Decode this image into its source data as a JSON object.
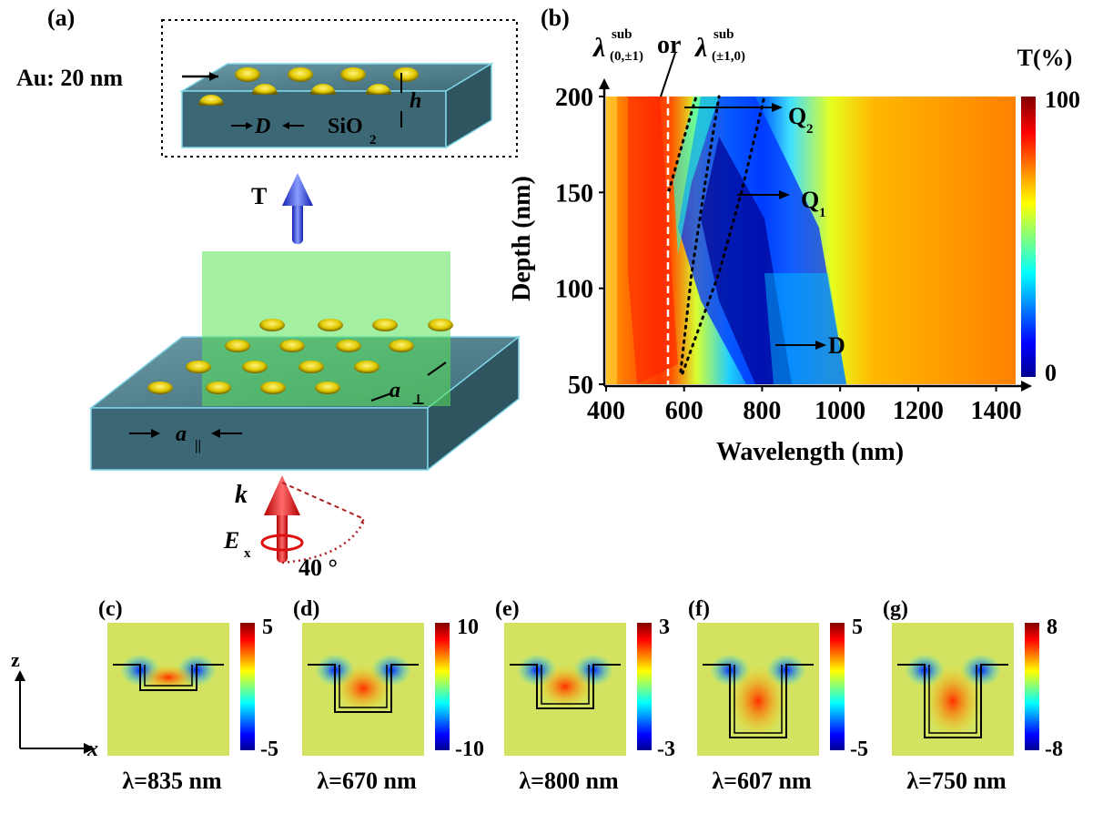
{
  "panel_a": {
    "label": "(a)",
    "au_label": "Au: 20 nm",
    "h_label": "h",
    "d_label": "D",
    "sio2_label": "SiO",
    "sio2_sub": "2",
    "t_label": "T",
    "a_perp": "a",
    "a_par": "a",
    "k_label": "k",
    "e_label": "E",
    "e_sub": "x",
    "angle_label": "40 °",
    "colors": {
      "substrate": "#4b7f8c",
      "holes": "#e8d400",
      "plane": "#57e357",
      "t_arrow": "#2233dd",
      "k_arrow": "#ee2222"
    }
  },
  "panel_b": {
    "label": "(b)",
    "lambda_text": "λ",
    "sub1_sup": "sub",
    "sub1_sub": "(0,±1)",
    "or_text": "or",
    "sub2_sup": "sub",
    "sub2_sub": "(±1,0)",
    "q2": "Q",
    "q2_sub": "2",
    "q1": "Q",
    "q1_sub": "1",
    "d_mode": "D",
    "colorbar_title": "T(%)",
    "colorbar_max": "100",
    "colorbar_min": "0"
  },
  "chart_data": {
    "type": "heatmap",
    "xlabel": "Wavelength (nm)",
    "ylabel": "Depth (nm)",
    "xlim": [
      400,
      1450
    ],
    "ylim": [
      50,
      200
    ],
    "x_ticks": [
      "400",
      "600",
      "800",
      "1000",
      "1200",
      "1400"
    ],
    "y_ticks": [
      "50",
      "100",
      "150",
      "200"
    ],
    "colorscale": "jet",
    "zlim": [
      0,
      100
    ],
    "rayleigh_anomaly_nm": 580,
    "Q1_curve": {
      "depth": [
        58,
        100,
        150,
        200
      ],
      "wavelength": [
        610,
        690,
        760,
        840
      ]
    },
    "Q2_curve": {
      "depth": [
        58,
        100,
        150,
        200
      ],
      "wavelength": [
        600,
        630,
        660,
        700
      ]
    },
    "D_mode": {
      "depth": 65,
      "wavelength": 790
    }
  },
  "field_panels": [
    {
      "label": "(c)",
      "wavelength": "λ=835 nm",
      "cbar_max": "5",
      "cbar_min": "-5"
    },
    {
      "label": "(d)",
      "wavelength": "λ=670 nm",
      "cbar_max": "10",
      "cbar_min": "-10"
    },
    {
      "label": "(e)",
      "wavelength": "λ=800 nm",
      "cbar_max": "3",
      "cbar_min": "-3"
    },
    {
      "label": "(f)",
      "wavelength": "λ=607 nm",
      "cbar_max": "5",
      "cbar_min": "-5"
    },
    {
      "label": "(g)",
      "wavelength": "λ=750 nm",
      "cbar_max": "8",
      "cbar_min": "-8"
    }
  ],
  "axes_ref": {
    "z": "z",
    "x": "x"
  }
}
